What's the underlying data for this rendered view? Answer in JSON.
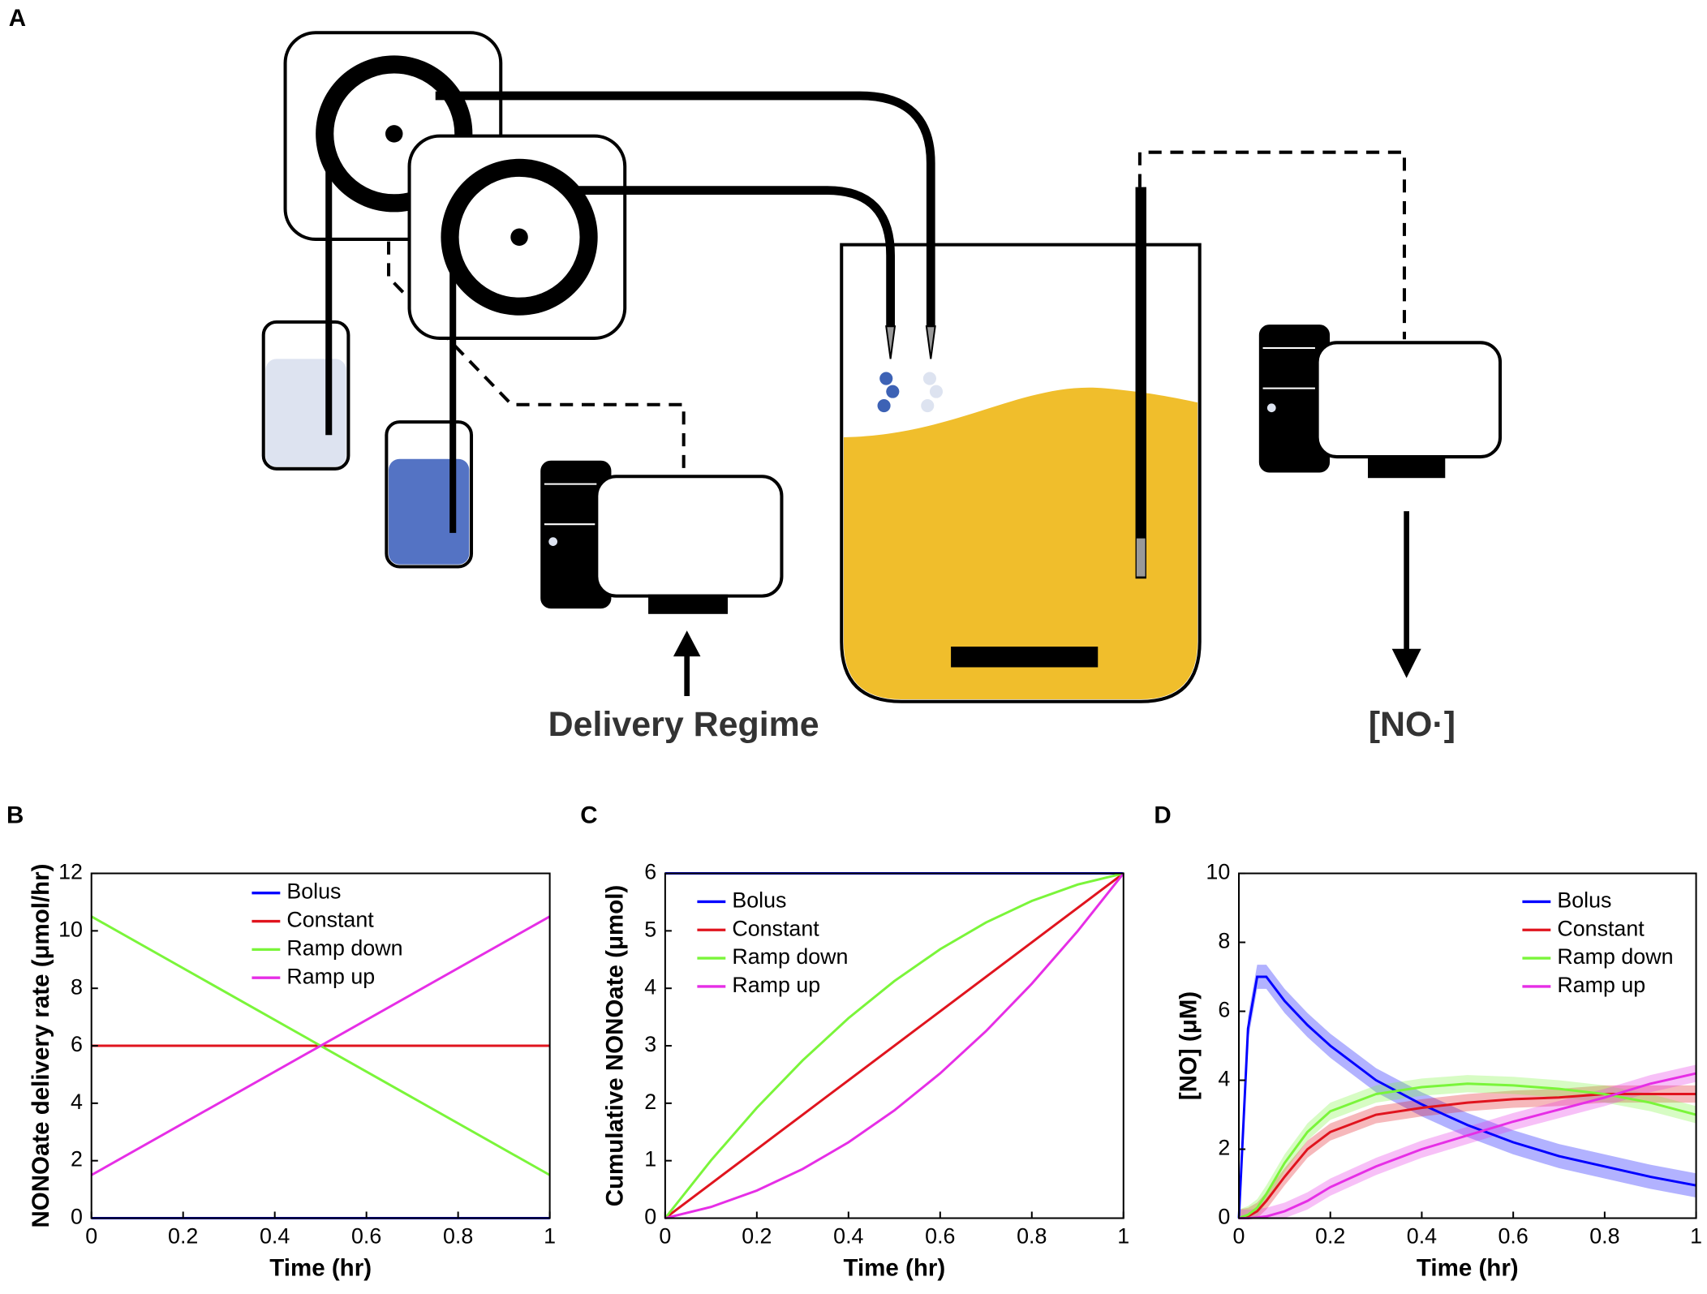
{
  "diagram": {
    "panel_label": "A",
    "input_label": "Delivery Regime",
    "output_label": "[NO·]"
  },
  "chart_data": [
    {
      "type": "line",
      "panel_label": "B",
      "xlabel": "Time (hr)",
      "ylabel": "NONOate delivery rate (μmol/hr)",
      "x": [
        0,
        1
      ],
      "xlim": [
        0,
        1
      ],
      "ylim": [
        0,
        12
      ],
      "xticks": [
        0,
        0.2,
        0.4,
        0.6,
        0.8,
        1
      ],
      "yticks": [
        0,
        2,
        4,
        6,
        8,
        10,
        12
      ],
      "legend": "upper center",
      "series": [
        {
          "name": "Bolus",
          "color": "#0000ff",
          "values": [
            0,
            0
          ]
        },
        {
          "name": "Constant",
          "color": "#e0141e",
          "values": [
            6,
            6
          ]
        },
        {
          "name": "Ramp down",
          "color": "#7af53a",
          "values": [
            10.5,
            1.5
          ]
        },
        {
          "name": "Ramp up",
          "color": "#e62ee6",
          "values": [
            1.5,
            10.5
          ]
        }
      ]
    },
    {
      "type": "line",
      "panel_label": "C",
      "xlabel": "Time (hr)",
      "ylabel": "Cumulative NONOate (μmol)",
      "x": [
        0,
        0.1,
        0.2,
        0.3,
        0.4,
        0.5,
        0.6,
        0.7,
        0.8,
        0.9,
        1
      ],
      "xlim": [
        0,
        1
      ],
      "ylim": [
        0,
        6
      ],
      "xticks": [
        0,
        0.2,
        0.4,
        0.6,
        0.8,
        1
      ],
      "yticks": [
        0,
        1,
        2,
        3,
        4,
        5,
        6
      ],
      "legend": "upper left",
      "series": [
        {
          "name": "Bolus",
          "color": "#0000ff",
          "values": [
            6,
            6,
            6,
            6,
            6,
            6,
            6,
            6,
            6,
            6,
            6
          ]
        },
        {
          "name": "Constant",
          "color": "#e0141e",
          "values": [
            0,
            0.6,
            1.2,
            1.8,
            2.4,
            3,
            3.6,
            4.2,
            4.8,
            5.4,
            6
          ]
        },
        {
          "name": "Ramp down",
          "color": "#7af53a",
          "values": [
            0,
            1.005,
            1.92,
            2.745,
            3.48,
            4.125,
            4.68,
            5.145,
            5.52,
            5.805,
            6
          ]
        },
        {
          "name": "Ramp up",
          "color": "#e62ee6",
          "values": [
            0,
            0.195,
            0.48,
            0.855,
            1.32,
            1.875,
            2.52,
            3.255,
            4.08,
            4.995,
            6
          ]
        }
      ]
    },
    {
      "type": "band-line",
      "panel_label": "D",
      "xlabel": "Time (hr)",
      "ylabel": "[NO] (μM)",
      "x": [
        0,
        0.02,
        0.04,
        0.06,
        0.1,
        0.15,
        0.2,
        0.3,
        0.4,
        0.5,
        0.6,
        0.7,
        0.8,
        0.9,
        1
      ],
      "xlim": [
        0,
        1
      ],
      "ylim": [
        0,
        10
      ],
      "xticks": [
        0,
        0.2,
        0.4,
        0.6,
        0.8,
        1
      ],
      "yticks": [
        0,
        2,
        4,
        6,
        8,
        10
      ],
      "legend": "upper right",
      "series": [
        {
          "name": "Bolus",
          "color": "#0000ff",
          "error": 0.35,
          "values": [
            0,
            5.5,
            7,
            7,
            6.3,
            5.6,
            5,
            4,
            3.3,
            2.7,
            2.2,
            1.8,
            1.5,
            1.2,
            0.95
          ]
        },
        {
          "name": "Constant",
          "color": "#e0141e",
          "error": 0.25,
          "values": [
            0,
            0.05,
            0.2,
            0.5,
            1.2,
            2,
            2.5,
            3,
            3.2,
            3.35,
            3.45,
            3.5,
            3.6,
            3.6,
            3.6
          ]
        },
        {
          "name": "Ramp down",
          "color": "#7af53a",
          "error": 0.25,
          "values": [
            0,
            0.1,
            0.3,
            0.7,
            1.6,
            2.5,
            3.1,
            3.6,
            3.8,
            3.9,
            3.85,
            3.75,
            3.6,
            3.35,
            3
          ]
        },
        {
          "name": "Ramp up",
          "color": "#e62ee6",
          "error": 0.25,
          "values": [
            0,
            0,
            0.02,
            0.05,
            0.2,
            0.5,
            0.9,
            1.5,
            2,
            2.4,
            2.8,
            3.15,
            3.5,
            3.9,
            4.2
          ]
        }
      ]
    }
  ]
}
